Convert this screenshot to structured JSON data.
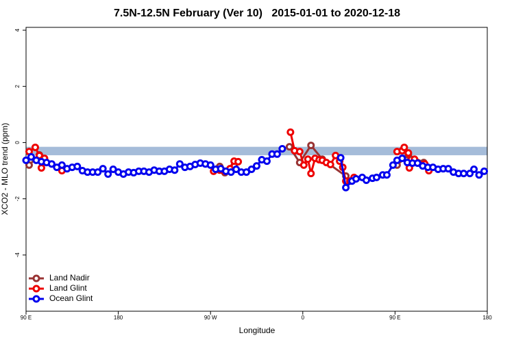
{
  "chart_data": {
    "type": "line",
    "title": "7.5N-12.5N February (Ver 10)   2015-01-01 to 2020-12-18",
    "xlabel": "Longitude",
    "ylabel": "XCO2 - MLO trend (ppm)",
    "xlim": [
      90,
      540
    ],
    "ylim": [
      -6,
      4.1
    ],
    "xticks": [
      {
        "value": 90,
        "label": "90 E"
      },
      {
        "value": 180,
        "label": "180"
      },
      {
        "value": 270,
        "label": "90 W"
      },
      {
        "value": 360,
        "label": "0"
      },
      {
        "value": 450,
        "label": "90 E"
      },
      {
        "value": 540,
        "label": "180"
      }
    ],
    "yticks": [
      -4,
      -2,
      0,
      2,
      4
    ],
    "band": [
      -0.45,
      -0.15
    ],
    "band_color": "#a5bcd9",
    "legend": "bottom-left",
    "series": [
      {
        "name": "Land Nadir",
        "color": "#993333",
        "x": [
          93,
          103,
          198,
          279,
          284,
          293,
          320,
          347,
          357,
          368,
          379,
          402,
          430,
          452,
          463,
          478
        ],
        "values": [
          -0.8,
          -0.44,
          null,
          -0.85,
          -1.07,
          -0.83,
          null,
          -0.15,
          -0.71,
          -0.1,
          -0.59,
          -1.19,
          null,
          -0.8,
          -0.44,
          -0.71
        ]
      },
      {
        "name": "Land Glint",
        "color": "#ee0000",
        "x": [
          93,
          99,
          103,
          105,
          108,
          125,
          198,
          273,
          279,
          284,
          289,
          293,
          297,
          320,
          348,
          352,
          357,
          361,
          365,
          368,
          372,
          376,
          379,
          383,
          387,
          392,
          396,
          399,
          402,
          406,
          410,
          430,
          452,
          457,
          459,
          463,
          464,
          469,
          479,
          483
        ],
        "values": [
          -0.32,
          -0.17,
          -0.46,
          -0.9,
          -0.56,
          -1.0,
          null,
          -1.02,
          -0.98,
          -1.02,
          -0.93,
          -0.66,
          -0.68,
          null,
          0.37,
          -0.29,
          -0.32,
          -0.8,
          -0.59,
          -1.1,
          -0.56,
          -0.61,
          -0.63,
          -0.71,
          -0.78,
          -0.46,
          -0.66,
          -0.88,
          -1.37,
          -1.37,
          -1.24,
          null,
          -0.32,
          -0.29,
          -0.17,
          -0.37,
          -0.9,
          -0.59,
          -0.76,
          -1.0
        ]
      },
      {
        "name": "Ocean Glint",
        "color": "#0000ee",
        "x": [
          90,
          95,
          100,
          105,
          110,
          115,
          120,
          125,
          130,
          135,
          140,
          145,
          150,
          155,
          160,
          165,
          170,
          175,
          180,
          185,
          190,
          195,
          200,
          205,
          210,
          215,
          220,
          225,
          230,
          235,
          240,
          245,
          250,
          255,
          260,
          265,
          270,
          275,
          280,
          285,
          290,
          295,
          300,
          305,
          310,
          315,
          320,
          325,
          330,
          335,
          340,
          370,
          397,
          402,
          408,
          412,
          418,
          422,
          428,
          432,
          438,
          442,
          448,
          452,
          457,
          462,
          467,
          472,
          477,
          482,
          487,
          492,
          497,
          502,
          507,
          512,
          517,
          523,
          527,
          532,
          537
        ],
        "values": [
          -0.63,
          -0.51,
          -0.63,
          -0.68,
          -0.71,
          -0.76,
          -0.88,
          -0.8,
          -0.93,
          -0.88,
          -0.85,
          -1.0,
          -1.05,
          -1.05,
          -1.05,
          -0.93,
          -1.12,
          -0.95,
          -1.05,
          -1.12,
          -1.05,
          -1.07,
          -1.02,
          -1.02,
          -1.05,
          -0.98,
          -1.02,
          -1.02,
          -0.95,
          -0.98,
          -0.76,
          -0.88,
          -0.85,
          -0.78,
          -0.73,
          -0.76,
          -0.8,
          -0.95,
          -0.93,
          -1.02,
          -1.05,
          -0.95,
          -1.05,
          -1.05,
          -0.95,
          -0.83,
          -0.61,
          -0.66,
          -0.41,
          -0.41,
          -0.22,
          null,
          -0.54,
          -1.6,
          -1.37,
          -1.29,
          -1.24,
          -1.34,
          -1.27,
          -1.24,
          -1.15,
          -1.15,
          -0.8,
          -0.63,
          -0.56,
          -0.71,
          -0.73,
          -0.73,
          -0.83,
          -0.88,
          -0.88,
          -0.95,
          -0.93,
          -0.93,
          -1.05,
          -1.1,
          -1.1,
          -1.1,
          -0.95,
          -1.15,
          -1.02
        ]
      }
    ]
  }
}
